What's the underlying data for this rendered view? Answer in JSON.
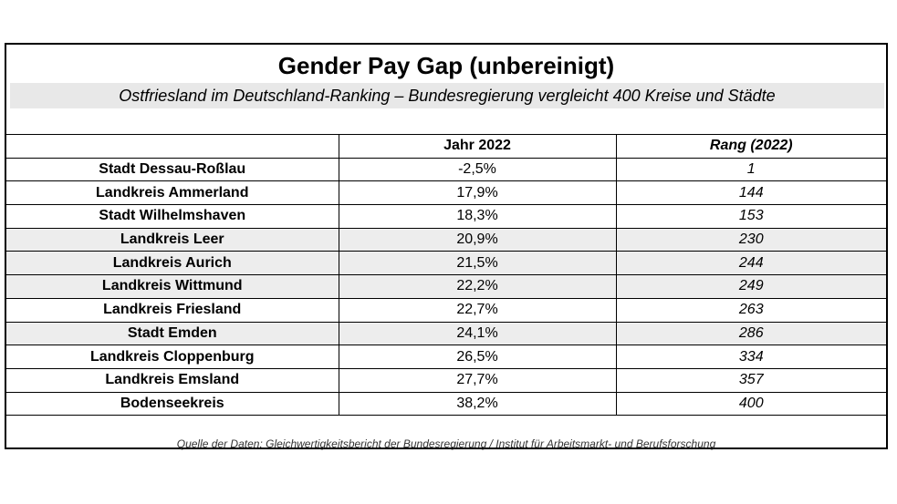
{
  "title": "Gender Pay Gap (unbereinigt)",
  "subtitle": "Ostfriesland im Deutschland-Ranking – Bundesregierung vergleicht 400 Kreise und Städte",
  "table": {
    "headers": [
      "",
      "Jahr 2022",
      "Rang (2022)"
    ],
    "rows": [
      {
        "name": "Stadt Dessau-Roßlau",
        "value": "-2,5%",
        "rank": "1",
        "shaded": false
      },
      {
        "name": "Landkreis Ammerland",
        "value": "17,9%",
        "rank": "144",
        "shaded": false
      },
      {
        "name": "Stadt Wilhelmshaven",
        "value": "18,3%",
        "rank": "153",
        "shaded": false
      },
      {
        "name": "Landkreis Leer",
        "value": "20,9%",
        "rank": "230",
        "shaded": true
      },
      {
        "name": "Landkreis Aurich",
        "value": "21,5%",
        "rank": "244",
        "shaded": true
      },
      {
        "name": "Landkreis Wittmund",
        "value": "22,2%",
        "rank": "249",
        "shaded": true
      },
      {
        "name": "Landkreis Friesland",
        "value": "22,7%",
        "rank": "263",
        "shaded": false
      },
      {
        "name": "Stadt Emden",
        "value": "24,1%",
        "rank": "286",
        "shaded": true
      },
      {
        "name": "Landkreis Cloppenburg",
        "value": "26,5%",
        "rank": "334",
        "shaded": false
      },
      {
        "name": "Landkreis Emsland",
        "value": "27,7%",
        "rank": "357",
        "shaded": false
      },
      {
        "name": "Bodenseekreis",
        "value": "38,2%",
        "rank": "400",
        "shaded": false
      }
    ]
  },
  "source": "Quelle der Daten: Gleichwertigkeitsbericht der Bundesregierung / Institut für Arbeitsmarkt- und Berufsforschung",
  "colors": {
    "border": "#000000",
    "shaded_row": "#ededed",
    "subtitle_band": "#e8e8e8"
  }
}
